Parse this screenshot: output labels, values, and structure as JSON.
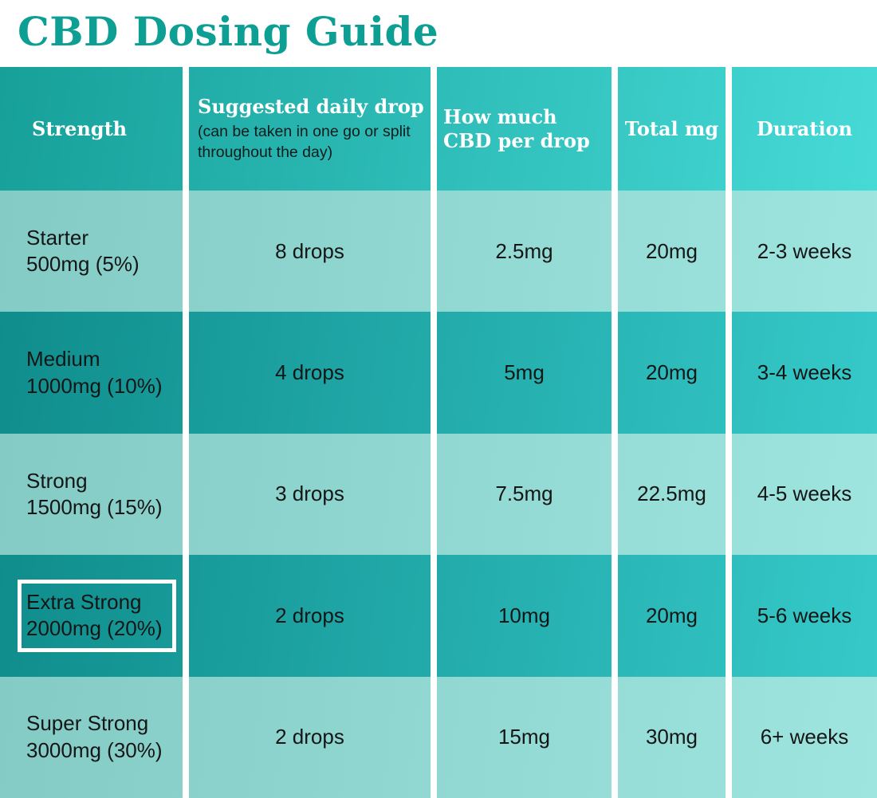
{
  "title": "CBD Dosing Guide",
  "colors": {
    "title_text": "#0d9f94",
    "header_gradient_left": "#17a09a",
    "header_gradient_right": "#46dad7",
    "dark_row_gradient_left": "#0f8d8c",
    "dark_row_gradient_right": "#36c9c9",
    "light_row_gradient_left": "#85cbc5",
    "light_row_gradient_right": "#9fe5df",
    "separator": "#ffffff",
    "highlight_border": "#ffffff"
  },
  "chart_data": {
    "type": "table",
    "title": "CBD Dosing Guide",
    "columns": [
      {
        "label": "Strength",
        "sub": ""
      },
      {
        "label": "Suggested daily drop",
        "sub": "(can be taken in one go or split throughout the day)"
      },
      {
        "label": "How much CBD per drop",
        "sub": ""
      },
      {
        "label": "Total mg",
        "sub": ""
      },
      {
        "label": "Duration",
        "sub": ""
      }
    ],
    "rows": [
      [
        "Starter\n500mg (5%)",
        "8 drops",
        "2.5mg",
        "20mg",
        "2-3 weeks"
      ],
      [
        "Medium\n1000mg (10%)",
        "4 drops",
        "5mg",
        "20mg",
        "3-4 weeks"
      ],
      [
        "Strong\n1500mg (15%)",
        "3 drops",
        "7.5mg",
        "22.5mg",
        "4-5 weeks"
      ],
      [
        "Extra Strong\n2000mg (20%)",
        "2 drops",
        "10mg",
        "20mg",
        "5-6 weeks"
      ],
      [
        "Super Strong\n3000mg (30%)",
        "2 drops",
        "15mg",
        "30mg",
        "6+ weeks"
      ]
    ],
    "highlighted_cell": {
      "row_index": 3,
      "col_index": 0,
      "value": "Extra Strong\n2000mg (20%)"
    },
    "row_shading": [
      "light",
      "dark",
      "light",
      "dark",
      "light"
    ],
    "legend_position": "none",
    "grid": "white column separators, no horizontal rules"
  }
}
